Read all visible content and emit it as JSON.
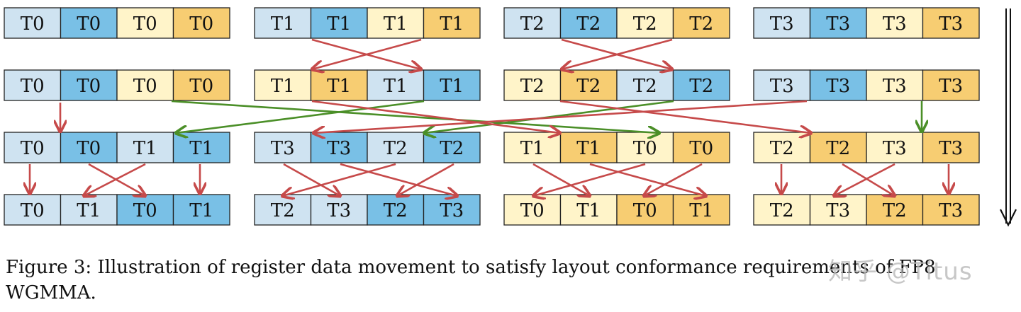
{
  "colors": {
    "light_blue": "#cfe3f1",
    "dark_blue": "#79c0e6",
    "light_yellow": "#fff4c9",
    "dark_yellow": "#f7cd72",
    "red_arrow": "#c64a4a",
    "green_arrow": "#4b8f28",
    "border": "#222222"
  },
  "rows": [
    [
      {
        "cells": [
          {
            "t": "T0",
            "c": "light_blue"
          },
          {
            "t": "T0",
            "c": "dark_blue"
          },
          {
            "t": "T0",
            "c": "light_yellow"
          },
          {
            "t": "T0",
            "c": "dark_yellow"
          }
        ]
      },
      {
        "cells": [
          {
            "t": "T1",
            "c": "light_blue"
          },
          {
            "t": "T1",
            "c": "dark_blue"
          },
          {
            "t": "T1",
            "c": "light_yellow"
          },
          {
            "t": "T1",
            "c": "dark_yellow"
          }
        ]
      },
      {
        "cells": [
          {
            "t": "T2",
            "c": "light_blue"
          },
          {
            "t": "T2",
            "c": "dark_blue"
          },
          {
            "t": "T2",
            "c": "light_yellow"
          },
          {
            "t": "T2",
            "c": "dark_yellow"
          }
        ]
      },
      {
        "cells": [
          {
            "t": "T3",
            "c": "light_blue"
          },
          {
            "t": "T3",
            "c": "dark_blue"
          },
          {
            "t": "T3",
            "c": "light_yellow"
          },
          {
            "t": "T3",
            "c": "dark_yellow"
          }
        ]
      }
    ],
    [
      {
        "cells": [
          {
            "t": "T0",
            "c": "light_blue"
          },
          {
            "t": "T0",
            "c": "dark_blue"
          },
          {
            "t": "T0",
            "c": "light_yellow"
          },
          {
            "t": "T0",
            "c": "dark_yellow"
          }
        ]
      },
      {
        "cells": [
          {
            "t": "T1",
            "c": "light_yellow"
          },
          {
            "t": "T1",
            "c": "dark_yellow"
          },
          {
            "t": "T1",
            "c": "light_blue"
          },
          {
            "t": "T1",
            "c": "dark_blue"
          }
        ]
      },
      {
        "cells": [
          {
            "t": "T2",
            "c": "light_yellow"
          },
          {
            "t": "T2",
            "c": "dark_yellow"
          },
          {
            "t": "T2",
            "c": "light_blue"
          },
          {
            "t": "T2",
            "c": "dark_blue"
          }
        ]
      },
      {
        "cells": [
          {
            "t": "T3",
            "c": "light_blue"
          },
          {
            "t": "T3",
            "c": "dark_blue"
          },
          {
            "t": "T3",
            "c": "light_yellow"
          },
          {
            "t": "T3",
            "c": "dark_yellow"
          }
        ]
      }
    ],
    [
      {
        "cells": [
          {
            "t": "T0",
            "c": "light_blue"
          },
          {
            "t": "T0",
            "c": "dark_blue"
          },
          {
            "t": "T1",
            "c": "light_blue"
          },
          {
            "t": "T1",
            "c": "dark_blue"
          }
        ]
      },
      {
        "cells": [
          {
            "t": "T3",
            "c": "light_blue"
          },
          {
            "t": "T3",
            "c": "dark_blue"
          },
          {
            "t": "T2",
            "c": "light_blue"
          },
          {
            "t": "T2",
            "c": "dark_blue"
          }
        ]
      },
      {
        "cells": [
          {
            "t": "T1",
            "c": "light_yellow"
          },
          {
            "t": "T1",
            "c": "dark_yellow"
          },
          {
            "t": "T0",
            "c": "light_yellow"
          },
          {
            "t": "T0",
            "c": "dark_yellow"
          }
        ]
      },
      {
        "cells": [
          {
            "t": "T2",
            "c": "light_yellow"
          },
          {
            "t": "T2",
            "c": "dark_yellow"
          },
          {
            "t": "T3",
            "c": "light_yellow"
          },
          {
            "t": "T3",
            "c": "dark_yellow"
          }
        ]
      }
    ],
    [
      {
        "cells": [
          {
            "t": "T0",
            "c": "light_blue"
          },
          {
            "t": "T1",
            "c": "light_blue"
          },
          {
            "t": "T0",
            "c": "dark_blue"
          },
          {
            "t": "T1",
            "c": "dark_blue"
          }
        ]
      },
      {
        "cells": [
          {
            "t": "T2",
            "c": "light_blue"
          },
          {
            "t": "T3",
            "c": "light_blue"
          },
          {
            "t": "T2",
            "c": "dark_blue"
          },
          {
            "t": "T3",
            "c": "dark_blue"
          }
        ]
      },
      {
        "cells": [
          {
            "t": "T0",
            "c": "light_yellow"
          },
          {
            "t": "T1",
            "c": "light_yellow"
          },
          {
            "t": "T0",
            "c": "dark_yellow"
          },
          {
            "t": "T1",
            "c": "dark_yellow"
          }
        ]
      },
      {
        "cells": [
          {
            "t": "T2",
            "c": "light_yellow"
          },
          {
            "t": "T3",
            "c": "light_yellow"
          },
          {
            "t": "T2",
            "c": "dark_yellow"
          },
          {
            "t": "T3",
            "c": "dark_yellow"
          }
        ]
      }
    ]
  ],
  "caption": {
    "text": "Figure 3: Illustration of register data movement to satisfy layout conformance requirements of FP8 WGMMA."
  },
  "watermark": "知乎 @Titus"
}
